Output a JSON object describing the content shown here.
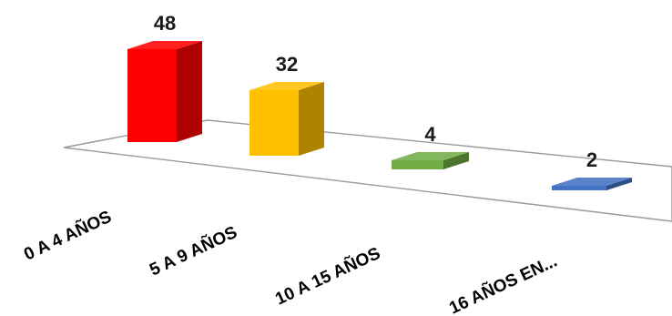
{
  "chart_data": {
    "type": "bar",
    "categories": [
      "0 A 4 AÑOS",
      "5 A 9 AÑOS",
      "10 A 15 AÑOS",
      "16 AÑOS EN..."
    ],
    "values": [
      48,
      32,
      4,
      2
    ],
    "data_labels": [
      "48",
      "32",
      "4",
      "2"
    ],
    "colors": [
      "#ff0000",
      "#ffc000",
      "#70ad47",
      "#4472c4"
    ],
    "title": "",
    "xlabel": "",
    "ylabel": "",
    "ylim": [
      0,
      48
    ],
    "grid": false,
    "legend": "none",
    "style": "3d-perspective-columns"
  }
}
